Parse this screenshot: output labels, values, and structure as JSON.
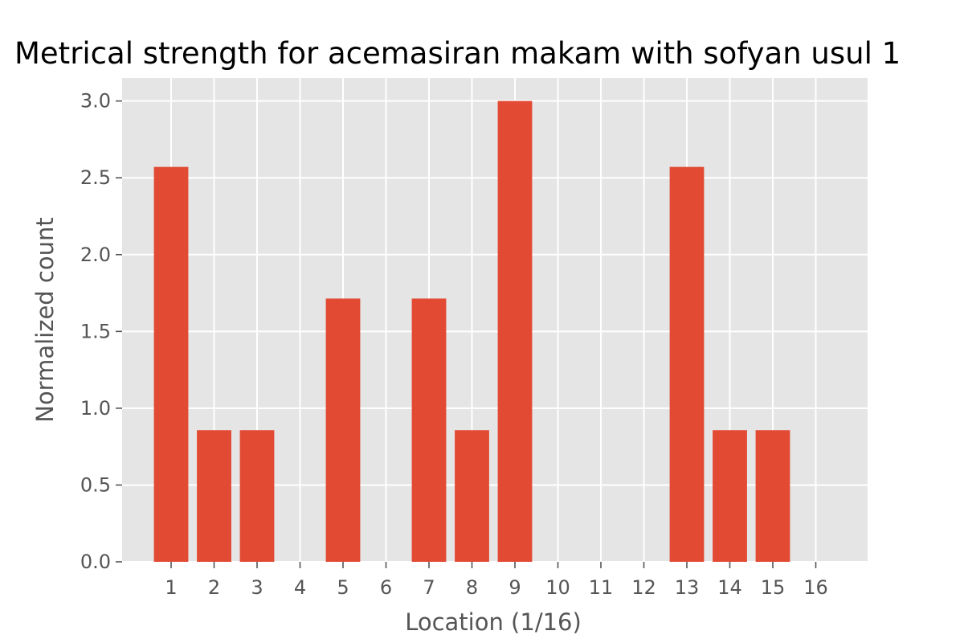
{
  "chart_data": {
    "type": "bar",
    "title": "Metrical strength for acemasiran makam with sofyan usul 1",
    "xlabel": "Location (1/16)",
    "ylabel": "Normalized count",
    "categories": [
      "1",
      "2",
      "3",
      "4",
      "5",
      "6",
      "7",
      "8",
      "9",
      "10",
      "11",
      "12",
      "13",
      "14",
      "15",
      "16"
    ],
    "values": [
      2.571,
      0.857,
      0.857,
      0,
      1.714,
      0,
      1.714,
      0.857,
      3.0,
      0,
      0,
      0,
      2.571,
      0.857,
      0.857,
      0
    ],
    "ylim": [
      0,
      3.15
    ],
    "yticks": [
      "0.0",
      "0.5",
      "1.0",
      "1.5",
      "2.0",
      "2.5",
      "3.0"
    ],
    "grid": true,
    "colors": {
      "bar": "#E24A33",
      "plot_background": "#E5E5E5",
      "grid": "#FFFFFF"
    }
  }
}
